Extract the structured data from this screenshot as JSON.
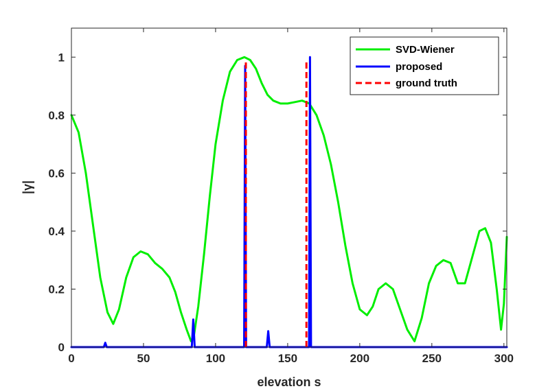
{
  "chart_data": {
    "type": "line",
    "xlabel": "elevation s",
    "ylabel": "|γ|",
    "xlim": [
      0,
      302
    ],
    "ylim": [
      0,
      1.1
    ],
    "xticks": [
      0,
      50,
      100,
      150,
      200,
      250,
      300
    ],
    "yticks": [
      0,
      0.2,
      0.4,
      0.6,
      0.8,
      1
    ],
    "xtick_labels": [
      "0",
      "50",
      "100",
      "150",
      "200",
      "250",
      "300"
    ],
    "ytick_labels": [
      "0",
      "0.2",
      "0.4",
      "0.6",
      "0.8",
      "1"
    ],
    "legend_position": "top-right",
    "grid": false,
    "series": [
      {
        "name": "SVD-Wiener",
        "color": "#00ee00",
        "style": "solid",
        "x": [
          0,
          5,
          10,
          15,
          20,
          25,
          29,
          33,
          38,
          43,
          48,
          53,
          58,
          63,
          68,
          72,
          76,
          80,
          83,
          85,
          88,
          92,
          96,
          100,
          105,
          110,
          115,
          120,
          124,
          128,
          132,
          136,
          140,
          145,
          150,
          155,
          160,
          165,
          170,
          175,
          180,
          185,
          190,
          195,
          200,
          205,
          209,
          213,
          218,
          223,
          228,
          233,
          238,
          243,
          248,
          253,
          258,
          263,
          268,
          273,
          278,
          283,
          287,
          291,
          295,
          298,
          300,
          302
        ],
        "values": [
          0.8,
          0.74,
          0.6,
          0.42,
          0.24,
          0.12,
          0.08,
          0.13,
          0.24,
          0.31,
          0.33,
          0.32,
          0.29,
          0.27,
          0.24,
          0.19,
          0.12,
          0.06,
          0.02,
          0.04,
          0.14,
          0.32,
          0.52,
          0.7,
          0.85,
          0.95,
          0.99,
          1.0,
          0.99,
          0.96,
          0.91,
          0.87,
          0.85,
          0.84,
          0.84,
          0.845,
          0.85,
          0.84,
          0.8,
          0.73,
          0.63,
          0.5,
          0.35,
          0.22,
          0.13,
          0.11,
          0.14,
          0.2,
          0.22,
          0.2,
          0.13,
          0.06,
          0.02,
          0.1,
          0.22,
          0.28,
          0.3,
          0.29,
          0.22,
          0.22,
          0.31,
          0.4,
          0.41,
          0.36,
          0.2,
          0.06,
          0.15,
          0.38
        ]
      },
      {
        "name": "proposed",
        "color": "#0000ff",
        "style": "solid",
        "x": [
          0,
          22.5,
          23.5,
          24.5,
          83.5,
          84.5,
          85.5,
          119.8,
          120.5,
          121.2,
          135.5,
          136.5,
          137.5,
          164.8,
          165.5,
          166.2,
          302
        ],
        "values": [
          0,
          0,
          0.015,
          0,
          0,
          0.095,
          0,
          0,
          0.97,
          0,
          0,
          0.055,
          0,
          0,
          1.0,
          0,
          0
        ]
      },
      {
        "name": "ground truth",
        "color": "#ff0000",
        "style": "dashed",
        "x": [
          121,
          121,
          163,
          163
        ],
        "values": [
          0,
          0.99,
          0,
          0.99
        ]
      }
    ]
  }
}
